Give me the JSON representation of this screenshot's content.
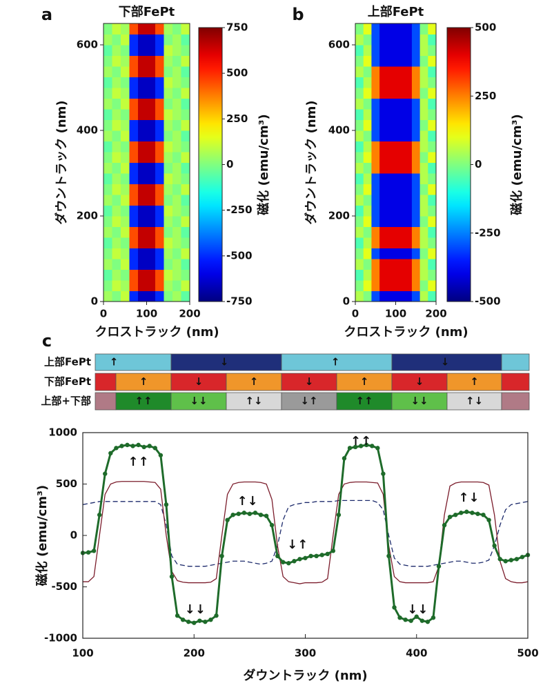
{
  "chart_data": [
    {
      "type": "heatmap",
      "panel_label": "a",
      "title": "下部FePt",
      "xlabel": "クロストラック (nm)",
      "ylabel": "ダウントラック (nm)",
      "clabel": "磁化 (emu/cm³)",
      "cmap": "jet",
      "xlim": [
        0,
        200
      ],
      "xticks": [
        0,
        100,
        200
      ],
      "ylim": [
        0,
        650
      ],
      "yticks": [
        0,
        200,
        400,
        600
      ],
      "clim": [
        -750,
        750
      ],
      "cticks": [
        -750,
        -500,
        -250,
        0,
        250,
        500,
        750
      ],
      "z": [
        [
          50,
          0,
          100,
          -500,
          -650,
          -650,
          -500,
          0,
          50,
          -50
        ],
        [
          0,
          100,
          50,
          450,
          650,
          650,
          450,
          50,
          0,
          100
        ],
        [
          -50,
          50,
          0,
          450,
          650,
          650,
          450,
          100,
          50,
          0
        ],
        [
          50,
          0,
          100,
          -500,
          -650,
          -650,
          -500,
          0,
          50,
          -50
        ],
        [
          0,
          100,
          50,
          -500,
          -650,
          -650,
          -500,
          50,
          0,
          100
        ],
        [
          -50,
          50,
          0,
          450,
          650,
          650,
          450,
          100,
          50,
          0
        ],
        [
          50,
          0,
          100,
          450,
          650,
          650,
          450,
          0,
          50,
          -50
        ],
        [
          0,
          100,
          50,
          -500,
          -650,
          -650,
          -500,
          50,
          0,
          100
        ],
        [
          -50,
          50,
          0,
          -500,
          -650,
          -650,
          -500,
          100,
          50,
          0
        ],
        [
          50,
          0,
          100,
          450,
          650,
          650,
          450,
          0,
          50,
          -50
        ],
        [
          0,
          100,
          50,
          450,
          650,
          650,
          450,
          50,
          0,
          100
        ],
        [
          -50,
          50,
          0,
          -500,
          -650,
          -650,
          -500,
          100,
          50,
          0
        ],
        [
          50,
          0,
          100,
          -500,
          -650,
          -650,
          -500,
          0,
          50,
          -50
        ],
        [
          0,
          100,
          50,
          450,
          650,
          650,
          450,
          50,
          0,
          100
        ],
        [
          -50,
          50,
          0,
          450,
          650,
          650,
          450,
          100,
          50,
          0
        ],
        [
          50,
          0,
          100,
          -500,
          -650,
          -650,
          -500,
          0,
          50,
          -50
        ],
        [
          0,
          100,
          50,
          -500,
          -650,
          -650,
          -500,
          50,
          0,
          100
        ],
        [
          -50,
          50,
          0,
          450,
          650,
          650,
          450,
          100,
          50,
          0
        ],
        [
          50,
          0,
          100,
          450,
          650,
          650,
          450,
          0,
          50,
          -50
        ],
        [
          0,
          100,
          50,
          -500,
          -650,
          -650,
          -500,
          50,
          0,
          100
        ],
        [
          -50,
          50,
          0,
          -500,
          -650,
          -650,
          -500,
          100,
          50,
          0
        ],
        [
          50,
          0,
          100,
          450,
          650,
          650,
          450,
          0,
          50,
          -50
        ],
        [
          0,
          100,
          50,
          450,
          650,
          650,
          450,
          50,
          0,
          100
        ],
        [
          -50,
          50,
          0,
          -500,
          -650,
          -650,
          -500,
          100,
          50,
          0
        ],
        [
          50,
          0,
          100,
          -500,
          -650,
          -650,
          -500,
          0,
          50,
          -50
        ],
        [
          0,
          100,
          50,
          450,
          650,
          650,
          450,
          50,
          0,
          100
        ]
      ]
    },
    {
      "type": "heatmap",
      "panel_label": "b",
      "title": "上部FePt",
      "xlabel": "クロストラック (nm)",
      "ylabel": "ダウントラック (nm)",
      "clabel": "磁化 (emu/cm³)",
      "cmap": "jet",
      "xlim": [
        0,
        200
      ],
      "xticks": [
        0,
        100,
        200
      ],
      "ylim": [
        0,
        650
      ],
      "yticks": [
        0,
        200,
        400,
        600
      ],
      "clim": [
        -500,
        500
      ],
      "cticks": [
        -500,
        -250,
        0,
        250,
        500
      ],
      "z": [
        [
          50,
          0,
          -300,
          -400,
          -400,
          -400,
          -400,
          -300,
          50,
          -50
        ],
        [
          0,
          100,
          250,
          400,
          400,
          400,
          400,
          250,
          0,
          100
        ],
        [
          -50,
          50,
          250,
          400,
          400,
          400,
          400,
          250,
          50,
          0
        ],
        [
          50,
          0,
          250,
          400,
          400,
          400,
          400,
          250,
          50,
          -50
        ],
        [
          0,
          100,
          -300,
          -400,
          -400,
          -400,
          -400,
          -300,
          0,
          100
        ],
        [
          -50,
          50,
          250,
          400,
          400,
          400,
          400,
          250,
          50,
          0
        ],
        [
          50,
          0,
          250,
          400,
          400,
          400,
          400,
          250,
          50,
          -50
        ],
        [
          0,
          100,
          -300,
          -400,
          -400,
          -400,
          -400,
          -300,
          0,
          100
        ],
        [
          -50,
          50,
          -300,
          -400,
          -400,
          -400,
          -400,
          -300,
          50,
          0
        ],
        [
          50,
          0,
          -300,
          -400,
          -400,
          -400,
          -400,
          -300,
          50,
          -50
        ],
        [
          0,
          100,
          -300,
          -400,
          -400,
          -400,
          -400,
          -300,
          0,
          100
        ],
        [
          -50,
          50,
          -300,
          -400,
          -400,
          -400,
          -400,
          -300,
          50,
          0
        ],
        [
          50,
          0,
          250,
          400,
          400,
          400,
          400,
          250,
          50,
          -50
        ],
        [
          0,
          100,
          250,
          400,
          400,
          400,
          400,
          250,
          0,
          100
        ],
        [
          -50,
          50,
          250,
          400,
          400,
          400,
          400,
          250,
          50,
          0
        ],
        [
          50,
          0,
          -300,
          -400,
          -400,
          -400,
          -400,
          -300,
          50,
          -50
        ],
        [
          0,
          100,
          -300,
          -400,
          -400,
          -400,
          -400,
          -300,
          0,
          100
        ],
        [
          -50,
          50,
          -300,
          -400,
          -400,
          -400,
          -400,
          -300,
          50,
          0
        ],
        [
          50,
          0,
          -300,
          -400,
          -400,
          -400,
          -400,
          -300,
          50,
          -50
        ],
        [
          0,
          100,
          250,
          400,
          400,
          400,
          400,
          250,
          0,
          100
        ],
        [
          -50,
          50,
          250,
          400,
          400,
          400,
          400,
          250,
          50,
          0
        ],
        [
          50,
          0,
          250,
          400,
          400,
          400,
          400,
          250,
          50,
          -50
        ],
        [
          0,
          100,
          -300,
          -400,
          -400,
          -400,
          -400,
          -300,
          0,
          100
        ],
        [
          -50,
          50,
          -300,
          -400,
          -400,
          -400,
          -400,
          -300,
          50,
          0
        ],
        [
          50,
          0,
          -300,
          -400,
          -400,
          -400,
          -400,
          -300,
          50,
          -50
        ],
        [
          0,
          100,
          -300,
          -400,
          -400,
          -400,
          -400,
          -300,
          0,
          100
        ]
      ]
    },
    {
      "type": "line",
      "panel_label": "c",
      "xlabel": "ダウントラック (nm)",
      "ylabel": "磁化 (emu/cm³)",
      "xlim": [
        100,
        500
      ],
      "xticks": [
        100,
        200,
        300,
        400,
        500
      ],
      "ylim": [
        -1000,
        1000
      ],
      "yticks": [
        -1000,
        -500,
        0,
        500,
        1000
      ],
      "state_rows": [
        [
          "↑",
          "↓",
          "↑",
          "↓"
        ],
        [
          "↑",
          "↓",
          "↑",
          "↓",
          "↑",
          "↓",
          "↑"
        ],
        [
          "↑↑",
          "↓↓",
          "↑↓",
          "↓↑",
          "↑↑",
          "↓↓",
          "↑↓"
        ]
      ],
      "annotations": [
        "↑↑",
        "↓↓",
        "↑↓",
        "↓↑",
        "↑↑",
        "↓↓",
        "↑↓"
      ],
      "x": [
        100,
        105,
        110,
        115,
        120,
        125,
        130,
        135,
        140,
        145,
        150,
        155,
        160,
        165,
        170,
        175,
        180,
        185,
        190,
        195,
        200,
        205,
        210,
        215,
        220,
        225,
        230,
        235,
        240,
        245,
        250,
        255,
        260,
        265,
        270,
        275,
        280,
        285,
        290,
        295,
        300,
        305,
        310,
        315,
        320,
        325,
        330,
        335,
        340,
        345,
        350,
        355,
        360,
        365,
        370,
        375,
        380,
        385,
        390,
        395,
        400,
        405,
        410,
        415,
        420,
        425,
        430,
        435,
        440,
        445,
        450,
        455,
        460,
        465,
        470,
        475,
        480,
        485,
        490,
        495,
        500
      ],
      "series": [
        {
          "name": "上部FePt",
          "color": "#1c2a6b",
          "dash": true,
          "markers": false,
          "values": [
            300,
            310,
            320,
            330,
            330,
            330,
            330,
            330,
            330,
            330,
            330,
            330,
            330,
            330,
            300,
            100,
            -200,
            -280,
            -290,
            -300,
            -300,
            -300,
            -300,
            -290,
            -280,
            -270,
            -260,
            -250,
            -250,
            -250,
            -260,
            -270,
            -280,
            -270,
            -250,
            -100,
            150,
            280,
            300,
            310,
            320,
            320,
            330,
            330,
            330,
            330,
            340,
            340,
            340,
            340,
            340,
            340,
            340,
            320,
            250,
            0,
            -220,
            -280,
            -290,
            -300,
            -300,
            -300,
            -300,
            -290,
            -280,
            -270,
            -260,
            -250,
            -250,
            -260,
            -270,
            -270,
            -260,
            -240,
            -100,
            100,
            250,
            300,
            310,
            320,
            330
          ]
        },
        {
          "name": "下部FePt",
          "color": "#c0202a",
          "line_color": "#7a1b2a",
          "dash": false,
          "markers": false,
          "values": [
            -450,
            -450,
            -400,
            0,
            400,
            500,
            520,
            525,
            525,
            525,
            525,
            525,
            520,
            515,
            450,
            0,
            -350,
            -440,
            -455,
            -460,
            -460,
            -460,
            -460,
            -455,
            -420,
            0,
            400,
            500,
            515,
            520,
            520,
            520,
            515,
            500,
            350,
            -100,
            -400,
            -450,
            -460,
            -470,
            -460,
            -460,
            -460,
            -455,
            -420,
            0,
            400,
            500,
            515,
            520,
            520,
            520,
            515,
            510,
            400,
            -100,
            -400,
            -450,
            -460,
            -460,
            -460,
            -460,
            -460,
            -450,
            -300,
            200,
            480,
            510,
            520,
            520,
            520,
            520,
            515,
            490,
            200,
            -250,
            -420,
            -450,
            -460,
            -460,
            -450
          ]
        },
        {
          "name": "上部+下部",
          "color": "#1e6b2a",
          "dash": false,
          "markers": true,
          "values": [
            -170,
            -165,
            -150,
            200,
            600,
            800,
            850,
            870,
            880,
            870,
            880,
            860,
            870,
            850,
            780,
            300,
            -400,
            -780,
            -820,
            -840,
            -850,
            -830,
            -840,
            -820,
            -780,
            -200,
            150,
            200,
            210,
            220,
            210,
            220,
            200,
            190,
            100,
            -200,
            -260,
            -270,
            -250,
            -230,
            -220,
            -200,
            -200,
            -190,
            -180,
            -150,
            200,
            750,
            850,
            860,
            870,
            880,
            870,
            850,
            600,
            -200,
            -700,
            -800,
            -820,
            -830,
            -790,
            -830,
            -840,
            -800,
            -300,
            100,
            180,
            200,
            220,
            230,
            220,
            210,
            200,
            150,
            -100,
            -230,
            -250,
            -240,
            -230,
            -210,
            -190
          ]
        }
      ]
    }
  ]
}
